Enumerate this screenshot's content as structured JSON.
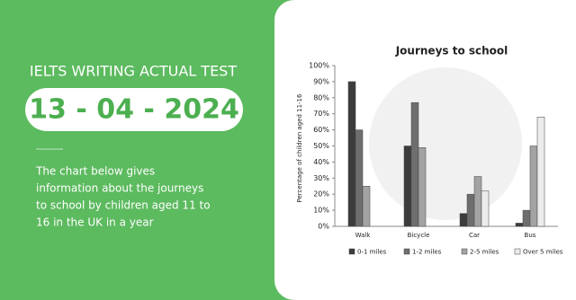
{
  "header": {
    "title": "IELTS WRITING ACTUAL TEST",
    "date": "13 - 04 - 2024",
    "description": [
      "The chart below gives",
      "information about the journeys",
      "to school by children aged 11 to",
      "16  in the UK in a year"
    ]
  },
  "chart_data": {
    "type": "bar",
    "title": "Journeys to school",
    "y_label": "Percentage of children aged 11-16",
    "categories": [
      "Walk",
      "Bicycle",
      "Car",
      "Bus"
    ],
    "series": [
      {
        "name": "0-1 miles",
        "color": "#3c3c3c",
        "values": [
          90,
          50,
          8,
          2
        ]
      },
      {
        "name": "1-2 miles",
        "color": "#6e6e6e",
        "values": [
          60,
          77,
          20,
          10
        ]
      },
      {
        "name": "2-5 miles",
        "color": "#a3a3a3",
        "values": [
          25,
          49,
          31,
          50
        ]
      },
      {
        "name": "Over 5 miles",
        "color": "#ececec",
        "values": [
          0,
          0,
          22,
          68
        ]
      }
    ],
    "ylim": [
      0,
      100
    ],
    "yticks": [
      {
        "value": 0,
        "label": "0%"
      },
      {
        "value": 10,
        "label": "10%"
      },
      {
        "value": 20,
        "label": "20%"
      },
      {
        "value": 30,
        "label": "30%"
      },
      {
        "value": 40,
        "label": "40%"
      },
      {
        "value": 50,
        "label": "50%"
      },
      {
        "value": 60,
        "label": "60%"
      },
      {
        "value": 70,
        "label": "70%"
      },
      {
        "value": 80,
        "label": "80%"
      },
      {
        "value": 90,
        "label": "90%"
      },
      {
        "value": 100,
        "label": "100%"
      }
    ],
    "legend": "bottom"
  }
}
